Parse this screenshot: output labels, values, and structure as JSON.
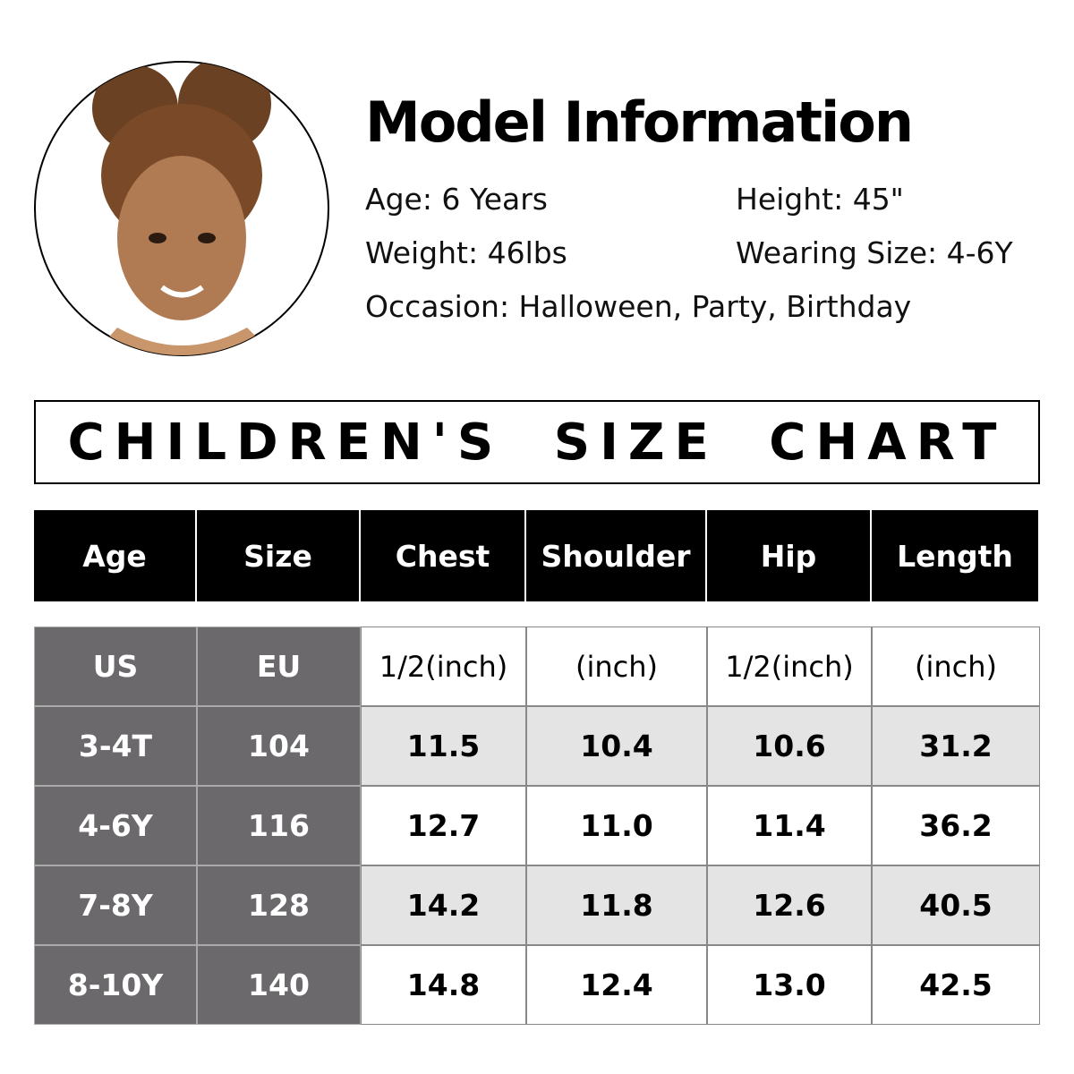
{
  "model": {
    "title": "Model Information",
    "fields": [
      "Age: 6 Years",
      "Height: 45\"",
      "Weight: 46lbs",
      "Wearing Size: 4-6Y",
      "Occasion: Halloween, Party, Birthday"
    ]
  },
  "chart_title": "CHILDREN'S SIZE CHART",
  "table": {
    "header": [
      "Age",
      "Size",
      "Chest",
      "Shoulder",
      "Hip",
      "Length"
    ],
    "units": [
      "US",
      "EU",
      "1/2(inch)",
      "(inch)",
      "1/2(inch)",
      "(inch)"
    ],
    "rows": [
      [
        "3-4T",
        "104",
        "11.5",
        "10.4",
        "10.6",
        "31.2"
      ],
      [
        "4-6Y",
        "116",
        "12.7",
        "11.0",
        "11.4",
        "36.2"
      ],
      [
        "7-8Y",
        "128",
        "14.2",
        "11.8",
        "12.6",
        "40.5"
      ],
      [
        "8-10Y",
        "140",
        "14.8",
        "12.4",
        "13.0",
        "42.5"
      ]
    ]
  }
}
